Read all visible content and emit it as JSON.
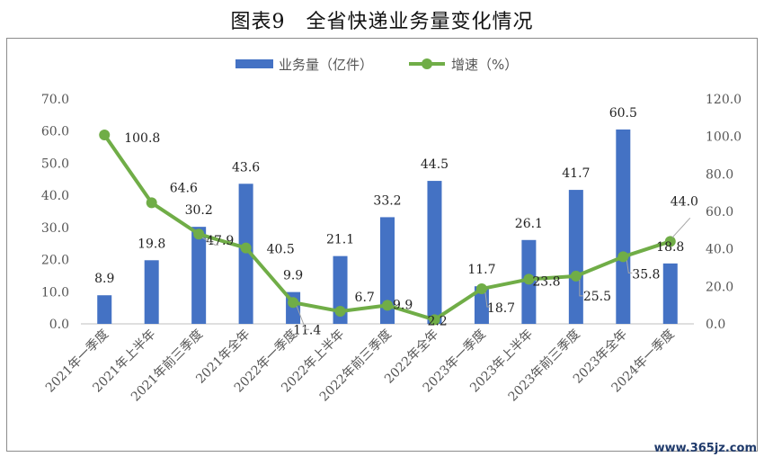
{
  "chart_data": {
    "type": "bar+line",
    "title": "图表9　全省快递业务量变化情况",
    "categories": [
      "2021年一季度",
      "2021年上半年",
      "2021年前三季度",
      "2021年全年",
      "2022年一季度",
      "2022年上半年",
      "2022年前三季度",
      "2022年全年",
      "2023年一季度",
      "2023年上半年",
      "2023年前三季度",
      "2023年全年",
      "2024年一季度"
    ],
    "series": [
      {
        "name": "业务量（亿件）",
        "type": "bar",
        "axis": "left",
        "color": "#4472c4",
        "values": [
          8.9,
          19.8,
          30.2,
          43.6,
          9.9,
          21.1,
          33.2,
          44.5,
          11.7,
          26.1,
          41.7,
          60.5,
          18.8
        ]
      },
      {
        "name": "增速（%）",
        "type": "line",
        "axis": "right",
        "color": "#70ad47",
        "values": [
          100.8,
          64.6,
          47.9,
          40.5,
          11.4,
          6.7,
          9.9,
          2.2,
          18.7,
          23.8,
          25.5,
          35.8,
          44.0
        ]
      }
    ],
    "y_left": {
      "min": 0,
      "max": 70,
      "step": 10,
      "tick_labels": [
        "0.0",
        "10.0",
        "20.0",
        "30.0",
        "40.0",
        "50.0",
        "60.0",
        "70.0"
      ]
    },
    "y_right": {
      "min": 0,
      "max": 120,
      "step": 20,
      "tick_labels": [
        "0.0",
        "20.0",
        "40.0",
        "60.0",
        "80.0",
        "100.0",
        "120.0"
      ]
    },
    "bar_labels": [
      "8.9",
      "19.8",
      "30.2",
      "43.6",
      "9.9",
      "21.1",
      "33.2",
      "44.5",
      "11.7",
      "26.1",
      "41.7",
      "60.5",
      "18.8"
    ],
    "line_labels": [
      "100.8",
      "64.6",
      "47.9",
      "40.5",
      "11.4",
      "6.7",
      "9.9",
      "2.2",
      "18.7",
      "23.8",
      "25.5",
      "35.8",
      "44.0"
    ],
    "legend_position": "top-center",
    "grid": false
  },
  "watermark": "www.365jz.com"
}
